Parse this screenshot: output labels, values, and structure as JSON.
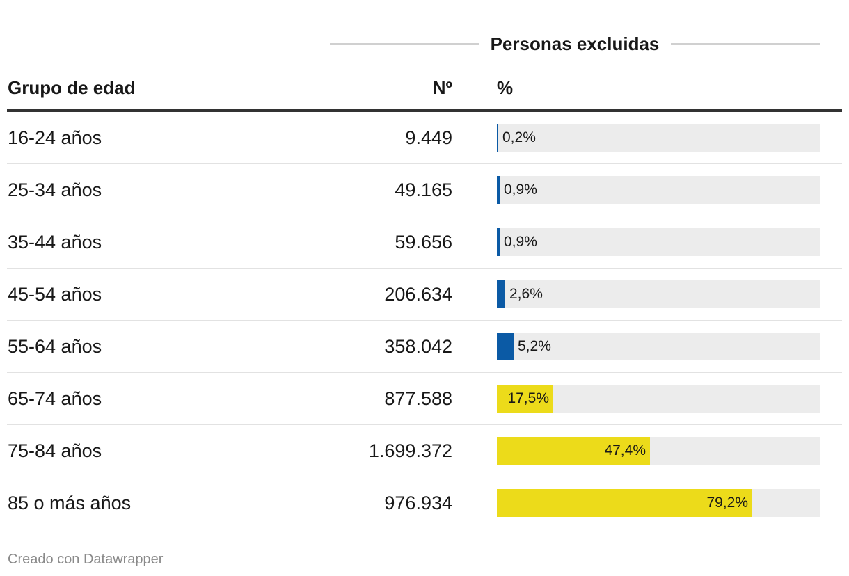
{
  "header": {
    "group_title": "Personas excluidas",
    "col_group": "Grupo de edad",
    "col_count": "Nº",
    "col_pct": "%"
  },
  "colors": {
    "low": "#0b5aa5",
    "high": "#ecdb1a",
    "track": "#ececec"
  },
  "chart_data": {
    "type": "table",
    "columns": [
      "Grupo de edad",
      "Nº",
      "%"
    ],
    "group_header": "Personas excluidas",
    "pct_max": 100,
    "rows": [
      {
        "group": "16-24 años",
        "count": "9.449",
        "pct": 0.2,
        "pct_label": "0,2%"
      },
      {
        "group": "25-34 años",
        "count": "49.165",
        "pct": 0.9,
        "pct_label": "0,9%"
      },
      {
        "group": "35-44 años",
        "count": "59.656",
        "pct": 0.9,
        "pct_label": "0,9%"
      },
      {
        "group": "45-54 años",
        "count": "206.634",
        "pct": 2.6,
        "pct_label": "2,6%"
      },
      {
        "group": "55-64 años",
        "count": "358.042",
        "pct": 5.2,
        "pct_label": "5,2%"
      },
      {
        "group": "65-74 años",
        "count": "877.588",
        "pct": 17.5,
        "pct_label": "17,5%"
      },
      {
        "group": "75-84 años",
        "count": "1.699.372",
        "pct": 47.4,
        "pct_label": "47,4%"
      },
      {
        "group": "85 o más años",
        "count": "976.934",
        "pct": 79.2,
        "pct_label": "79,2%"
      }
    ]
  },
  "footer": {
    "credit": "Creado con Datawrapper"
  }
}
